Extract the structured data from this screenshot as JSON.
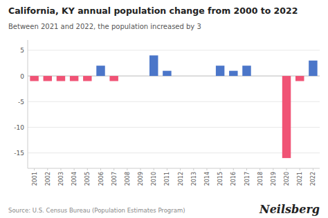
{
  "chart_data": {
    "type": "bar",
    "title": "California, KY annual population change from 2000 to 2022",
    "subtitle": "Between 2021 and 2022, the population increased by 3",
    "annotations": [
      "Source: U.S. Census Bureau (Population Estimates Program)",
      "Neilsberg"
    ],
    "categories": [
      "2001",
      "2002",
      "2003",
      "2004",
      "2005",
      "2006",
      "2007",
      "2008",
      "2009",
      "2010",
      "2011",
      "2012",
      "2013",
      "2014",
      "2015",
      "2016",
      "2017",
      "2018",
      "2019",
      "2020",
      "2021",
      "2022"
    ],
    "values": [
      -1,
      -1,
      -1,
      -1,
      -1,
      2,
      -1,
      0,
      0,
      4,
      1,
      0,
      0,
      0,
      2,
      1,
      2,
      0,
      0,
      -16,
      -1,
      3
    ],
    "colors": [
      "#f05375",
      "#f05375",
      "#f05375",
      "#f05375",
      "#f05375",
      "#4b76c9",
      "#f05375",
      "#4b76c9",
      "#4b76c9",
      "#4b76c9",
      "#4b76c9",
      "#4b76c9",
      "#4b76c9",
      "#4b76c9",
      "#4b76c9",
      "#4b76c9",
      "#4b76c9",
      "#4b76c9",
      "#4b76c9",
      "#f05375",
      "#f05375",
      "#4b76c9"
    ],
    "ylim": [
      -18,
      7
    ],
    "yticks": [
      -15,
      -10,
      -5,
      0,
      5
    ],
    "grid": true
  }
}
